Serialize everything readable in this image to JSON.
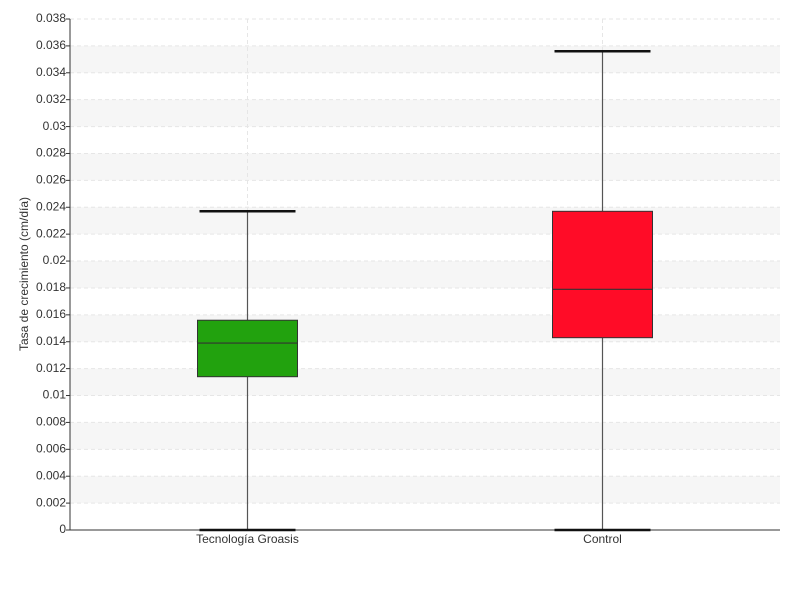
{
  "chart_data": {
    "type": "box",
    "y_label": "Tasa de crecimiento (cm/día)",
    "categories": [
      "Tecnología Groasis",
      "Control"
    ],
    "boxes": [
      {
        "min": 0,
        "q1": 0.0114,
        "median": 0.0139,
        "q3": 0.0156,
        "max": 0.0237
      },
      {
        "min": 0,
        "q1": 0.0143,
        "median": 0.0179,
        "q3": 0.0237,
        "max": 0.0356
      }
    ],
    "colors": [
      "#22a20e",
      "#ff0c27"
    ],
    "ylim": [
      0,
      0.038
    ],
    "yticks": [
      0,
      0.002,
      0.004,
      0.006,
      0.008,
      0.01,
      0.012,
      0.014,
      0.016,
      0.018,
      0.02,
      0.022,
      0.024,
      0.026,
      0.028,
      0.03,
      0.032,
      0.034,
      0.036,
      0.038
    ],
    "grid": true
  }
}
